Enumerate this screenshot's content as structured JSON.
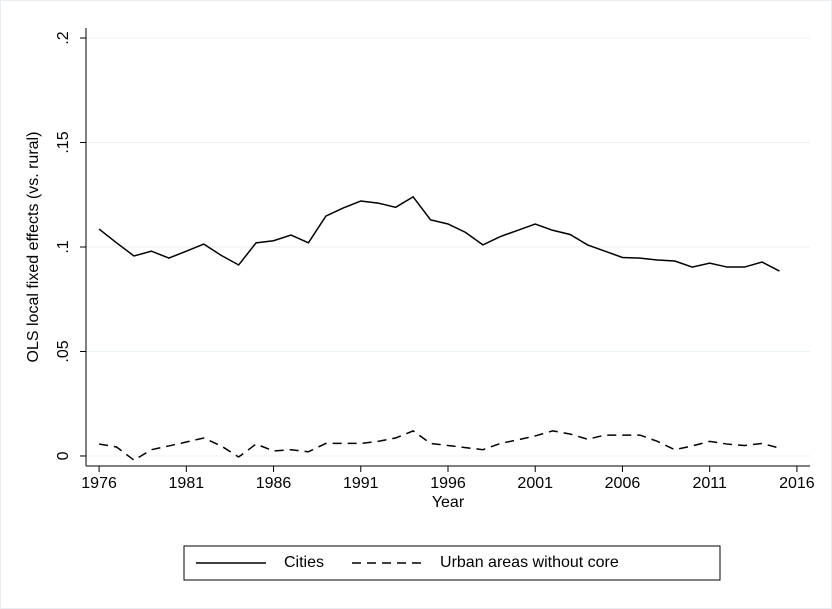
{
  "chart_data": {
    "type": "line",
    "ylabel": "OLS local fixed effects (vs. rural)",
    "xlabel": "Year",
    "x": [
      1976,
      1977,
      1978,
      1979,
      1980,
      1981,
      1982,
      1983,
      1984,
      1985,
      1986,
      1987,
      1988,
      1989,
      1990,
      1991,
      1992,
      1993,
      1994,
      1995,
      1996,
      1997,
      1998,
      1999,
      2000,
      2001,
      2002,
      2003,
      2004,
      2005,
      2006,
      2007,
      2008,
      2009,
      2010,
      2011,
      2012,
      2013,
      2014,
      2015
    ],
    "series": [
      {
        "name": "Cities",
        "color": "#000000",
        "line_style": "solid",
        "values": [
          0.1086,
          0.102,
          0.0957,
          0.098,
          0.0947,
          0.098,
          0.1014,
          0.096,
          0.0914,
          0.102,
          0.103,
          0.1057,
          0.102,
          0.1148,
          0.1187,
          0.122,
          0.121,
          0.119,
          0.124,
          0.113,
          0.111,
          0.107,
          0.101,
          0.105,
          0.108,
          0.111,
          0.108,
          0.106,
          0.101,
          0.098,
          0.095,
          0.0947,
          0.0938,
          0.0933,
          0.0904,
          0.0923,
          0.0904,
          0.0904,
          0.0928,
          0.0885
        ]
      },
      {
        "name": "Urban areas without core",
        "color": "#000000",
        "line_style": "dashed",
        "values": [
          0.0057,
          0.0043,
          -0.002,
          0.003,
          0.0048,
          0.0067,
          0.0086,
          0.0048,
          -0.0005,
          0.0057,
          0.0024,
          0.003,
          0.002,
          0.006,
          0.006,
          0.006,
          0.007,
          0.0086,
          0.012,
          0.006,
          0.005,
          0.004,
          0.003,
          0.006,
          0.0077,
          0.0096,
          0.012,
          0.0105,
          0.008,
          0.01,
          0.01,
          0.01,
          0.007,
          0.003,
          0.0048,
          0.007,
          0.0057,
          0.005,
          0.006,
          0.0038
        ]
      }
    ],
    "xlim": [
      1975.25,
      2016.75
    ],
    "ylim": [
      -0.0048,
      0.2048
    ],
    "xticks": [
      1976,
      1981,
      1986,
      1991,
      1996,
      2001,
      2006,
      2011,
      2016
    ],
    "yticks": [
      0,
      {
        "value": 0.05,
        "label": ".05"
      },
      {
        "value": 0.1,
        "label": ".1"
      },
      {
        "value": 0.15,
        "label": ".15"
      },
      {
        "value": 0.2,
        "label": ".2"
      }
    ],
    "grid": true,
    "legend_position": "bottom"
  }
}
